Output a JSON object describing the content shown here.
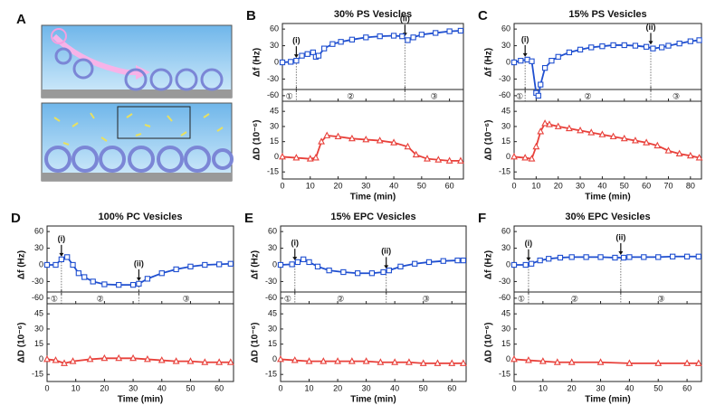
{
  "figure": {
    "panel_A": "A"
  },
  "chart_data": [
    {
      "type": "line",
      "panel": "B",
      "title": "30% PS Vesicles",
      "ylabel": "Δf (Hz)",
      "xlim": [
        0,
        65
      ],
      "xticks": [
        0,
        10,
        20,
        30,
        40,
        50,
        60
      ],
      "ylim": [
        -70,
        70
      ],
      "yticks": [
        -60,
        -30,
        0,
        30,
        60
      ],
      "series": [
        {
          "color": "#1f4fd0",
          "marker": "square",
          "x": [
            0,
            3,
            5,
            7,
            9,
            11,
            12,
            13,
            15,
            18,
            21,
            25,
            30,
            35,
            40,
            43,
            45,
            47,
            50,
            55,
            60,
            64
          ],
          "values": [
            0,
            1,
            3,
            12,
            15,
            18,
            10,
            12,
            25,
            33,
            37,
            41,
            45,
            47,
            48,
            47,
            40,
            45,
            50,
            53,
            56,
            57
          ]
        }
      ],
      "phases": {
        "boundaries": [
          5,
          44
        ],
        "labels": [
          "①",
          "②",
          "③"
        ]
      },
      "annotations": [
        {
          "text": "(i)",
          "x": 5,
          "y": 3
        },
        {
          "text": "(ii)",
          "x": 44,
          "y": 42
        }
      ]
    },
    {
      "type": "line",
      "ylabel": "ΔD (10⁻⁶)",
      "xlabel": "Time (min)",
      "xlim": [
        0,
        65
      ],
      "xticks": [
        0,
        10,
        20,
        30,
        40,
        50,
        60
      ],
      "ylim": [
        -22,
        55
      ],
      "yticks": [
        -15,
        0,
        15,
        30,
        45
      ],
      "series": [
        {
          "color": "#e8413b",
          "marker": "triangle",
          "x": [
            0,
            5,
            10,
            12,
            14,
            16,
            20,
            25,
            30,
            35,
            40,
            45,
            48,
            52,
            56,
            60,
            64
          ],
          "values": [
            0,
            -1,
            -2,
            -1,
            15,
            21,
            20,
            18,
            17,
            16,
            14,
            10,
            2,
            -2,
            -3,
            -4,
            -4
          ]
        }
      ]
    },
    {
      "type": "line",
      "panel": "C",
      "title": "15% PS Vesicles",
      "ylabel": "Δf (Hz)",
      "xlim": [
        0,
        85
      ],
      "xticks": [
        0,
        10,
        20,
        30,
        40,
        50,
        60,
        70,
        80
      ],
      "ylim": [
        -70,
        70
      ],
      "yticks": [
        -60,
        -30,
        0,
        30,
        60
      ],
      "series": [
        {
          "color": "#1f4fd0",
          "marker": "square",
          "x": [
            0,
            3,
            6,
            8,
            10,
            11,
            12,
            14,
            17,
            20,
            25,
            30,
            35,
            40,
            45,
            50,
            55,
            60,
            63,
            67,
            70,
            75,
            80,
            84
          ],
          "values": [
            0,
            3,
            5,
            2,
            -55,
            -60,
            -40,
            -10,
            3,
            10,
            18,
            23,
            27,
            29,
            31,
            31,
            30,
            28,
            25,
            27,
            30,
            34,
            38,
            40
          ]
        }
      ],
      "phases": {
        "boundaries": [
          5,
          62
        ],
        "labels": [
          "①",
          "②",
          "③"
        ]
      },
      "annotations": [
        {
          "text": "(i)",
          "x": 5,
          "y": 5
        },
        {
          "text": "(ii)",
          "x": 62,
          "y": 27
        }
      ]
    },
    {
      "type": "line",
      "ylabel": "ΔD (10⁻⁶)",
      "xlabel": "Time (min)",
      "xlim": [
        0,
        85
      ],
      "xticks": [
        0,
        10,
        20,
        30,
        40,
        50,
        60,
        70,
        80
      ],
      "ylim": [
        -22,
        55
      ],
      "yticks": [
        -15,
        0,
        15,
        30,
        45
      ],
      "series": [
        {
          "color": "#e8413b",
          "marker": "triangle",
          "x": [
            0,
            5,
            8,
            10,
            12,
            14,
            16,
            20,
            25,
            30,
            35,
            40,
            45,
            50,
            55,
            60,
            65,
            70,
            75,
            80,
            84
          ],
          "values": [
            0,
            -1,
            -2,
            10,
            25,
            33,
            32,
            30,
            28,
            26,
            24,
            22,
            20,
            18,
            16,
            14,
            11,
            6,
            3,
            1,
            -1
          ]
        }
      ]
    },
    {
      "type": "line",
      "panel": "D",
      "title": "100% PC Vesicles",
      "ylabel": "Δf (Hz)",
      "xlim": [
        0,
        65
      ],
      "xticks": [
        0,
        10,
        20,
        30,
        40,
        50,
        60
      ],
      "ylim": [
        -70,
        70
      ],
      "yticks": [
        -60,
        -30,
        0,
        30,
        60
      ],
      "series": [
        {
          "color": "#1f4fd0",
          "marker": "square",
          "x": [
            0,
            3,
            5,
            7,
            9,
            11,
            13,
            16,
            20,
            25,
            30,
            32,
            35,
            40,
            45,
            50,
            55,
            60,
            64
          ],
          "values": [
            0,
            0,
            10,
            14,
            0,
            -15,
            -22,
            -30,
            -35,
            -36,
            -36,
            -34,
            -25,
            -15,
            -8,
            -3,
            0,
            1,
            2
          ]
        }
      ],
      "phases": {
        "boundaries": [
          5,
          32
        ],
        "labels": [
          "①",
          "②",
          "③"
        ]
      },
      "annotations": [
        {
          "text": "(i)",
          "x": 5,
          "y": 10
        },
        {
          "text": "(ii)",
          "x": 32,
          "y": -34
        }
      ]
    },
    {
      "type": "line",
      "ylabel": "ΔD (10⁻⁶)",
      "xlabel": "Time (min)",
      "xlim": [
        0,
        65
      ],
      "xticks": [
        0,
        10,
        20,
        30,
        40,
        50,
        60
      ],
      "ylim": [
        -22,
        55
      ],
      "yticks": [
        -15,
        0,
        15,
        30,
        45
      ],
      "series": [
        {
          "color": "#e8413b",
          "marker": "triangle",
          "x": [
            0,
            3,
            6,
            9,
            15,
            20,
            25,
            30,
            35,
            40,
            45,
            50,
            55,
            60,
            64
          ],
          "values": [
            0,
            -1,
            -4,
            -2,
            0,
            1,
            1,
            1,
            0,
            -1,
            -2,
            -2,
            -3,
            -3,
            -3
          ]
        }
      ]
    },
    {
      "type": "line",
      "panel": "E",
      "title": "15% EPC Vesicles",
      "ylabel": "Δf (Hz)",
      "xlim": [
        0,
        65
      ],
      "xticks": [
        0,
        10,
        20,
        30,
        40,
        50,
        60
      ],
      "ylim": [
        -70,
        70
      ],
      "yticks": [
        -60,
        -30,
        0,
        30,
        60
      ],
      "series": [
        {
          "color": "#1f4fd0",
          "marker": "square",
          "x": [
            0,
            4,
            6,
            8,
            10,
            13,
            17,
            22,
            27,
            32,
            36,
            38,
            42,
            47,
            52,
            57,
            62,
            64
          ],
          "values": [
            0,
            1,
            5,
            10,
            5,
            -3,
            -10,
            -13,
            -15,
            -15,
            -13,
            -10,
            -3,
            2,
            5,
            7,
            8,
            8
          ]
        }
      ],
      "phases": {
        "boundaries": [
          5,
          37
        ],
        "labels": [
          "①",
          "②",
          "③"
        ]
      },
      "annotations": [
        {
          "text": "(i)",
          "x": 5,
          "y": 3
        },
        {
          "text": "(ii)",
          "x": 37,
          "y": -12
        }
      ]
    },
    {
      "type": "line",
      "ylabel": "ΔD (10⁻⁶)",
      "xlabel": "Time (min)",
      "xlim": [
        0,
        65
      ],
      "xticks": [
        0,
        10,
        20,
        30,
        40,
        50,
        60
      ],
      "ylim": [
        -22,
        55
      ],
      "yticks": [
        -15,
        0,
        15,
        30,
        45
      ],
      "series": [
        {
          "color": "#e8413b",
          "marker": "triangle",
          "x": [
            0,
            5,
            10,
            15,
            20,
            25,
            30,
            35,
            40,
            45,
            50,
            55,
            60,
            64
          ],
          "values": [
            0,
            -1,
            -2,
            -2,
            -2,
            -2,
            -2,
            -3,
            -3,
            -3,
            -4,
            -4,
            -4,
            -4
          ]
        }
      ]
    },
    {
      "type": "line",
      "panel": "F",
      "title": "30% EPC Vesicles",
      "ylabel": "Δf (Hz)",
      "xlim": [
        0,
        65
      ],
      "xticks": [
        0,
        10,
        20,
        30,
        40,
        50,
        60
      ],
      "ylim": [
        -70,
        70
      ],
      "yticks": [
        -60,
        -30,
        0,
        30,
        60
      ],
      "series": [
        {
          "color": "#1f4fd0",
          "marker": "square",
          "x": [
            0,
            4,
            6,
            9,
            12,
            16,
            20,
            25,
            30,
            35,
            38,
            40,
            45,
            50,
            55,
            60,
            64
          ],
          "values": [
            0,
            0,
            2,
            8,
            11,
            13,
            14,
            14,
            14,
            13,
            13,
            14,
            14,
            14,
            15,
            15,
            15
          ]
        }
      ],
      "phases": {
        "boundaries": [
          5,
          37
        ],
        "labels": [
          "①",
          "②",
          "③"
        ]
      },
      "annotations": [
        {
          "text": "(i)",
          "x": 5,
          "y": 2
        },
        {
          "text": "(ii)",
          "x": 37,
          "y": 13
        }
      ]
    },
    {
      "type": "line",
      "ylabel": "ΔD (10⁻⁶)",
      "xlabel": "Time (min)",
      "xlim": [
        0,
        65
      ],
      "xticks": [
        0,
        10,
        20,
        30,
        40,
        50,
        60
      ],
      "ylim": [
        -22,
        55
      ],
      "yticks": [
        -15,
        0,
        15,
        30,
        45
      ],
      "series": [
        {
          "color": "#e8413b",
          "marker": "triangle",
          "x": [
            0,
            5,
            10,
            15,
            20,
            30,
            40,
            50,
            60,
            64
          ],
          "values": [
            0,
            -1,
            -2,
            -3,
            -3,
            -3,
            -4,
            -4,
            -4,
            -4
          ]
        }
      ]
    }
  ]
}
